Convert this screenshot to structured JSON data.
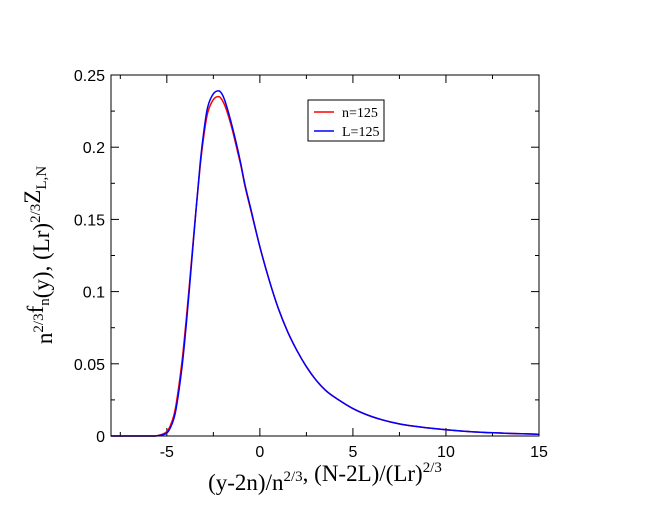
{
  "chart_data": {
    "type": "line",
    "title": "",
    "xlabel": {
      "parts": [
        {
          "t": "(y-2n)/n",
          "s": "n"
        },
        {
          "t": "2/3",
          "s": "sup"
        },
        {
          "t": ", (N-2L)/(Lr)",
          "s": "n"
        },
        {
          "t": "2/3",
          "s": "sup"
        }
      ]
    },
    "ylabel": {
      "parts": [
        {
          "t": "n",
          "s": "n"
        },
        {
          "t": "2/3",
          "s": "sup"
        },
        {
          "t": "f",
          "s": "n"
        },
        {
          "t": "n",
          "s": "sub"
        },
        {
          "t": "(y), (Lr)",
          "s": "n"
        },
        {
          "t": "2/3",
          "s": "sup"
        },
        {
          "t": "Z",
          "s": "n"
        },
        {
          "t": "L,N",
          "s": "sub"
        }
      ]
    },
    "xlim": [
      -8,
      15
    ],
    "ylim": [
      0,
      0.25
    ],
    "xticks": [
      -5,
      0,
      5,
      10,
      15
    ],
    "xtick_labels": [
      "-5",
      "0",
      "5",
      "10",
      "15"
    ],
    "yticks": [
      0,
      0.05,
      0.1,
      0.15,
      0.2,
      0.25
    ],
    "ytick_labels": [
      "0",
      "0.05",
      "0.1",
      "0.15",
      "0.2",
      "0.25"
    ],
    "grid": false,
    "legend_position": "top-right",
    "series": [
      {
        "name": "n=125",
        "color": "#ff0000",
        "x": [
          -8,
          -6,
          -5.5,
          -5,
          -4.7,
          -4.5,
          -4.2,
          -4,
          -3.8,
          -3.5,
          -3.2,
          -3,
          -2.8,
          -2.5,
          -2.2,
          -2,
          -1.8,
          -1.5,
          -1.2,
          -1,
          -0.8,
          -0.5,
          0,
          0.5,
          1,
          1.5,
          2,
          2.5,
          3,
          3.5,
          4,
          5,
          6,
          7,
          8,
          10,
          12,
          15
        ],
        "y": [
          0,
          0,
          0.0003,
          0.003,
          0.011,
          0.022,
          0.05,
          0.075,
          0.103,
          0.147,
          0.188,
          0.209,
          0.224,
          0.233,
          0.235,
          0.232,
          0.226,
          0.213,
          0.197,
          0.186,
          0.173,
          0.157,
          0.131,
          0.108,
          0.088,
          0.072,
          0.059,
          0.048,
          0.039,
          0.032,
          0.027,
          0.019,
          0.0135,
          0.0098,
          0.0073,
          0.0043,
          0.0025,
          0.0012
        ]
      },
      {
        "name": "L=125",
        "color": "#0000ff",
        "x": [
          -8,
          -6,
          -5.5,
          -5,
          -4.7,
          -4.5,
          -4.2,
          -4,
          -3.8,
          -3.5,
          -3.2,
          -3,
          -2.8,
          -2.5,
          -2.2,
          -2,
          -1.8,
          -1.5,
          -1.2,
          -1,
          -0.8,
          -0.5,
          0,
          0.5,
          1,
          1.5,
          2,
          2.5,
          3,
          3.5,
          4,
          5,
          6,
          7,
          8,
          10,
          12,
          15
        ],
        "y": [
          0,
          0,
          0.0002,
          0.002,
          0.009,
          0.019,
          0.046,
          0.071,
          0.1,
          0.146,
          0.19,
          0.212,
          0.228,
          0.237,
          0.239,
          0.236,
          0.229,
          0.215,
          0.199,
          0.187,
          0.174,
          0.158,
          0.131,
          0.108,
          0.088,
          0.072,
          0.059,
          0.048,
          0.039,
          0.032,
          0.027,
          0.019,
          0.0135,
          0.0098,
          0.0073,
          0.0043,
          0.0025,
          0.0012
        ]
      }
    ]
  }
}
